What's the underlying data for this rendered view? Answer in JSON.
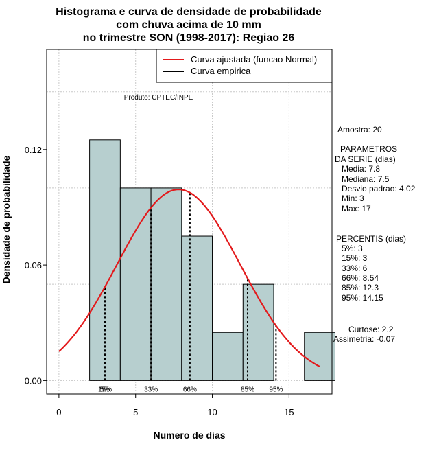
{
  "chart_data": {
    "type": "bar",
    "title_lines": [
      "Histograma e curva de densidade de probabilidade",
      "com chuva acima de 10 mm",
      "no trimestre SON (1998-2017): Regiao 26"
    ],
    "xlabel": "Numero de dias",
    "ylabel": "Densidade de probabilidade",
    "xlim": [
      -0.8,
      17.8
    ],
    "ylim": [
      -0.007,
      0.172
    ],
    "x_ticks": [
      0,
      5,
      10,
      15
    ],
    "y_ticks": [
      0.0,
      0.06,
      0.12
    ],
    "y_tick_labels": [
      "0.00",
      "0.06",
      "0.12"
    ],
    "grid_y": [
      0.0,
      0.05,
      0.1,
      0.15
    ],
    "grid_x": [
      0,
      5,
      10,
      15
    ],
    "bins": [
      {
        "x0": 2,
        "x1": 4,
        "value": 0.125
      },
      {
        "x0": 4,
        "x1": 6,
        "value": 0.1
      },
      {
        "x0": 6,
        "x1": 8,
        "value": 0.1
      },
      {
        "x0": 8,
        "x1": 10,
        "value": 0.075
      },
      {
        "x0": 10,
        "x1": 12,
        "value": 0.025
      },
      {
        "x0": 12,
        "x1": 14,
        "value": 0.05
      },
      {
        "x0": 14,
        "x1": 16,
        "value": 0.0
      },
      {
        "x0": 16,
        "x1": 18,
        "value": 0.025
      }
    ],
    "normal_curve": {
      "mean": 7.8,
      "sd": 4.02,
      "x_from": 0,
      "x_to": 17
    },
    "percentile_lines": [
      {
        "label": "5%",
        "x": 3
      },
      {
        "label": "15%",
        "x": 3
      },
      {
        "label": "33%",
        "x": 6
      },
      {
        "label": "66%",
        "x": 8.54
      },
      {
        "label": "85%",
        "x": 12.3
      },
      {
        "label": "95%",
        "x": 14.15
      }
    ],
    "legend": [
      {
        "label": "Curva ajustada (funcao Normal)",
        "color": "#e31a1c"
      },
      {
        "label": "Curva empirica",
        "color": "#000000"
      }
    ],
    "annotation": "Produto: CPTEC/INPE",
    "bar_color": "#b7cfcf",
    "curve_color": "#e31a1c"
  },
  "side_panel": {
    "amostra": "Amostra: 20",
    "params_title_1": "PARAMETROS",
    "params_title_2": "DA SERIE (dias)",
    "media": "Media: 7.8",
    "mediana": "Mediana: 7.5",
    "desvio": "Desvio padrao: 4.02",
    "min": "Min: 3",
    "max": "Max: 17",
    "percentis_title": "PERCENTIS (dias)",
    "p5": "5%: 3",
    "p15": "15%: 3",
    "p33": "33%: 6",
    "p66": "66%: 8.54",
    "p85": "85%: 12.3",
    "p95": "95%: 14.15",
    "curtose": "Curtose: 2.2",
    "assimetria": "Assimetria: -0.07"
  }
}
